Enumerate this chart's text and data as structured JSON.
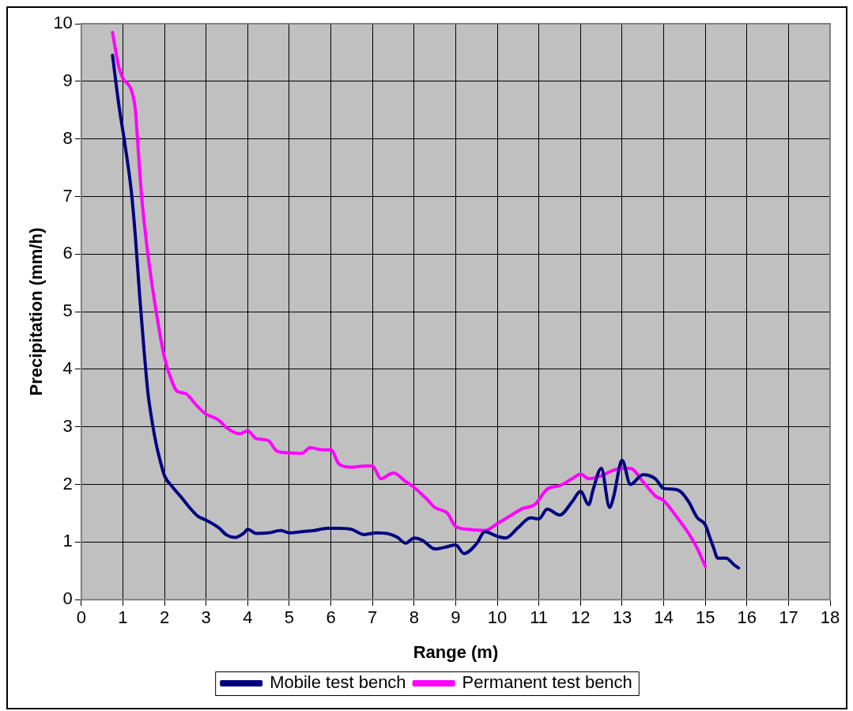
{
  "chart_data": {
    "type": "line",
    "xlabel": "Range (m)",
    "ylabel": "Precipitation (mm/h)",
    "xlim": [
      0,
      18
    ],
    "xticks": [
      0,
      1,
      2,
      3,
      4,
      5,
      6,
      7,
      8,
      9,
      10,
      11,
      12,
      13,
      14,
      15,
      16,
      17,
      18
    ],
    "ylim": [
      0,
      10
    ],
    "yticks": [
      0,
      1,
      2,
      3,
      4,
      5,
      6,
      7,
      8,
      9,
      10
    ],
    "grid": true,
    "legend": "bottom",
    "marker": "none",
    "line_style": "solid",
    "series": [
      {
        "name": "Mobile test bench",
        "color": "#000080",
        "x": [
          0.75,
          0.9,
          1.05,
          1.2,
          1.3,
          1.4,
          1.5,
          1.6,
          1.7,
          1.8,
          1.9,
          2.0,
          2.2,
          2.4,
          2.6,
          2.8,
          3.0,
          3.3,
          3.5,
          3.7,
          3.9,
          4.0,
          4.2,
          4.5,
          4.8,
          5.0,
          5.3,
          5.6,
          5.9,
          6.2,
          6.5,
          6.8,
          7.1,
          7.4,
          7.6,
          7.8,
          8.0,
          8.2,
          8.5,
          8.8,
          9.0,
          9.2,
          9.5,
          9.7,
          10.0,
          10.2,
          10.5,
          10.8,
          11.0,
          11.2,
          11.5,
          11.8,
          12.0,
          12.2,
          12.3,
          12.5,
          12.7,
          12.8,
          13.0,
          13.2,
          13.5,
          13.8,
          14.0,
          14.2,
          14.4,
          14.6,
          14.8,
          15.0,
          15.1,
          15.2,
          15.3,
          15.5,
          15.7,
          15.8
        ],
        "values": [
          9.45,
          8.6,
          7.9,
          7.1,
          6.3,
          5.3,
          4.4,
          3.6,
          3.1,
          2.7,
          2.4,
          2.15,
          1.95,
          1.78,
          1.6,
          1.45,
          1.38,
          1.25,
          1.12,
          1.08,
          1.15,
          1.22,
          1.15,
          1.16,
          1.2,
          1.16,
          1.18,
          1.2,
          1.24,
          1.24,
          1.22,
          1.13,
          1.16,
          1.14,
          1.08,
          0.98,
          1.07,
          1.03,
          0.88,
          0.92,
          0.95,
          0.8,
          0.97,
          1.18,
          1.1,
          1.07,
          1.25,
          1.42,
          1.4,
          1.57,
          1.47,
          1.7,
          1.88,
          1.65,
          1.9,
          2.28,
          1.6,
          1.8,
          2.42,
          2.0,
          2.17,
          2.1,
          1.93,
          1.92,
          1.88,
          1.7,
          1.43,
          1.3,
          1.1,
          0.9,
          0.72,
          0.72,
          0.6,
          0.55
        ]
      },
      {
        "name": "Permanent test bench",
        "color": "#ff00ff",
        "x": [
          0.75,
          0.9,
          1.0,
          1.2,
          1.3,
          1.35,
          1.45,
          1.6,
          1.8,
          2.0,
          2.2,
          2.3,
          2.5,
          2.8,
          3.0,
          3.3,
          3.5,
          3.8,
          4.0,
          4.2,
          4.5,
          4.7,
          5.0,
          5.3,
          5.5,
          5.8,
          6.0,
          6.2,
          6.5,
          6.8,
          7.0,
          7.2,
          7.5,
          7.8,
          8.0,
          8.3,
          8.5,
          8.8,
          9.0,
          9.3,
          9.7,
          10.0,
          10.3,
          10.6,
          10.9,
          11.2,
          11.5,
          11.8,
          12.0,
          12.2,
          12.5,
          12.8,
          13.0,
          13.2,
          13.5,
          13.8,
          14.0,
          14.3,
          14.6,
          14.8,
          15.0
        ],
        "values": [
          9.85,
          9.25,
          9.05,
          8.85,
          8.5,
          8.0,
          7.0,
          6.0,
          5.0,
          4.2,
          3.75,
          3.62,
          3.58,
          3.35,
          3.22,
          3.12,
          2.98,
          2.88,
          2.93,
          2.8,
          2.76,
          2.58,
          2.55,
          2.54,
          2.64,
          2.6,
          2.6,
          2.35,
          2.3,
          2.32,
          2.32,
          2.1,
          2.2,
          2.05,
          1.95,
          1.75,
          1.6,
          1.5,
          1.27,
          1.22,
          1.2,
          1.32,
          1.45,
          1.58,
          1.65,
          1.92,
          1.98,
          2.1,
          2.18,
          2.1,
          2.15,
          2.25,
          2.28,
          2.28,
          2.05,
          1.8,
          1.72,
          1.45,
          1.15,
          0.9,
          0.58
        ]
      }
    ]
  }
}
